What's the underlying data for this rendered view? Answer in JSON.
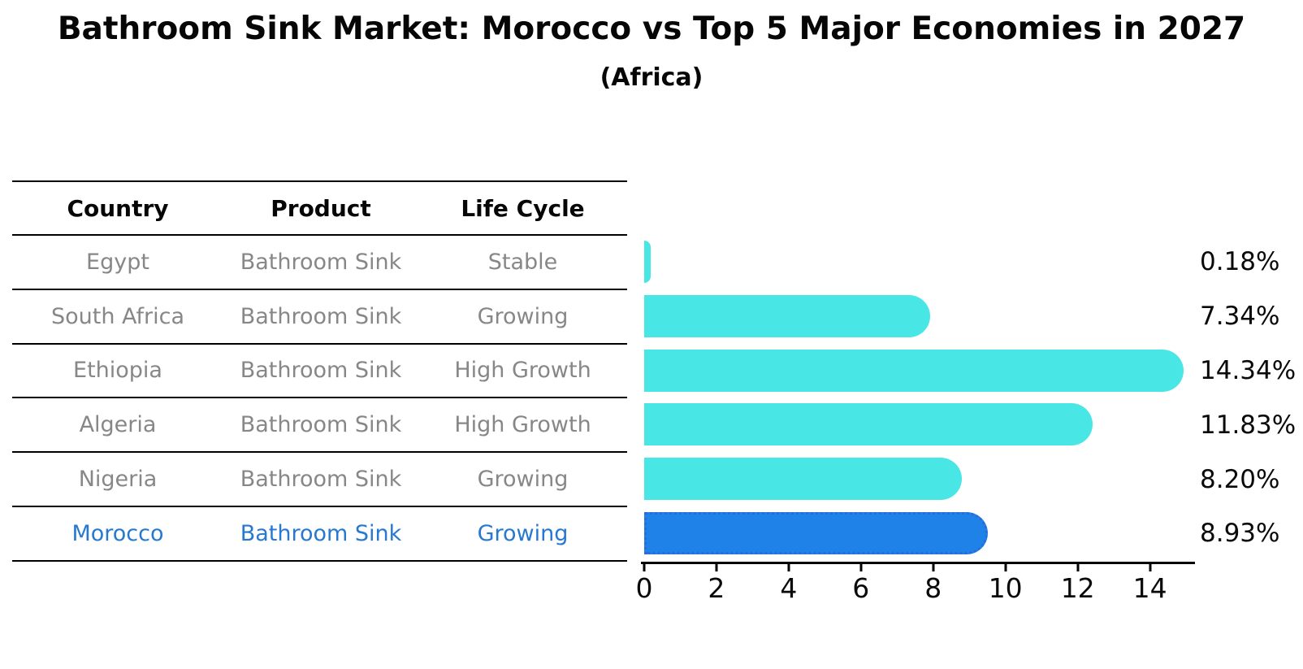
{
  "title": "Bathroom Sink Market: Morocco vs Top 5 Major Economies in 2027",
  "subtitle": "(Africa)",
  "table": {
    "headers": [
      "Country",
      "Product",
      "Life Cycle"
    ],
    "rows": [
      {
        "country": "Egypt",
        "product": "Bathroom Sink",
        "life_cycle": "Stable",
        "highlighted": false
      },
      {
        "country": "South Africa",
        "product": "Bathroom Sink",
        "life_cycle": "Growing",
        "highlighted": false
      },
      {
        "country": "Ethiopia",
        "product": "Bathroom Sink",
        "life_cycle": "High Growth",
        "highlighted": false
      },
      {
        "country": "Algeria",
        "product": "Bathroom Sink",
        "life_cycle": "High Growth",
        "highlighted": false
      },
      {
        "country": "Nigeria",
        "product": "Bathroom Sink",
        "life_cycle": "Growing",
        "highlighted": false
      },
      {
        "country": "Morocco",
        "product": "Bathroom Sink",
        "life_cycle": "Growing",
        "highlighted": true
      }
    ]
  },
  "chart_data": {
    "type": "bar",
    "orientation": "horizontal",
    "title": "Bathroom Sink Market: Morocco vs Top 5 Major Economies in 2027",
    "subtitle": "(Africa)",
    "categories": [
      "Egypt",
      "South Africa",
      "Ethiopia",
      "Algeria",
      "Nigeria",
      "Morocco"
    ],
    "values": [
      0.18,
      7.34,
      14.34,
      11.83,
      8.2,
      8.93
    ],
    "value_labels": [
      "0.18%",
      "7.34%",
      "14.34%",
      "11.83%",
      "8.20%",
      "8.93%"
    ],
    "xticks": [
      0,
      2,
      4,
      6,
      8,
      10,
      12,
      14
    ],
    "xlim": [
      0,
      15.2
    ],
    "grid": false,
    "legend": false,
    "highlight_index": 5,
    "colors": {
      "bar_default": "#48E6E4",
      "bar_highlight": "#1E82E8",
      "highlight_border": "#2B6BD9",
      "highlight_text": "#2678D0",
      "row_text": "#878787",
      "axis": "#000000"
    }
  }
}
